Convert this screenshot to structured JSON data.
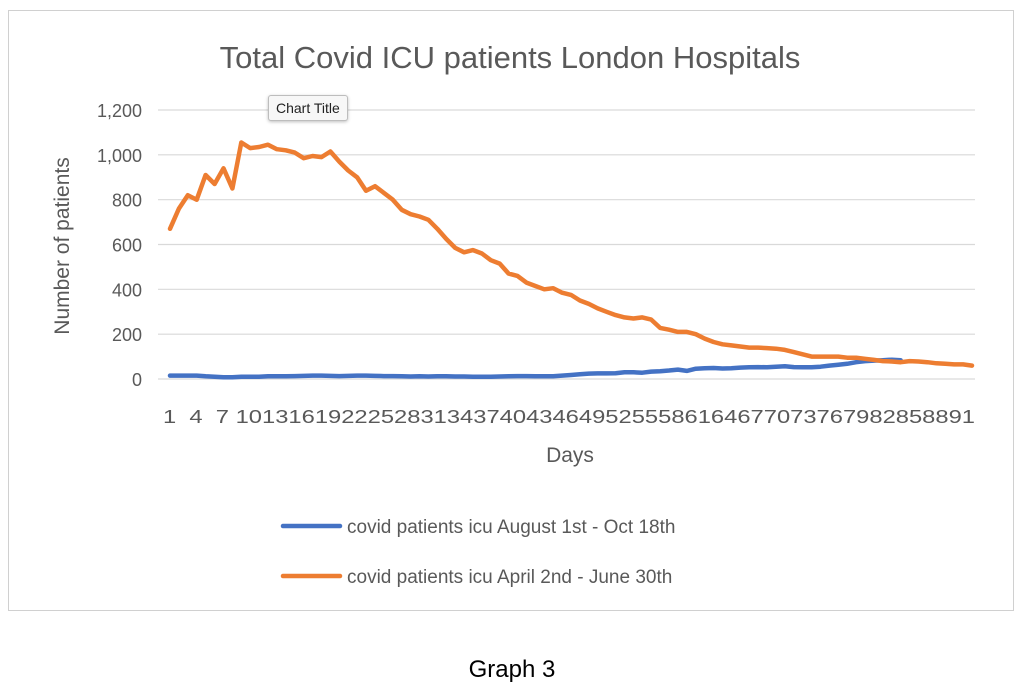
{
  "caption": "Graph 3",
  "tooltip": "Chart Title",
  "chart_data": {
    "type": "line",
    "title": "Total Covid ICU patients London Hospitals",
    "xlabel": "Days",
    "ylabel": "Number of patients",
    "ylim": [
      0,
      1200
    ],
    "yticks": [
      "0",
      "200",
      "400",
      "600",
      "800",
      "1,000",
      "1,200"
    ],
    "xtick_text": "1  4  7 10131619222528313437404346495255586164677073767982858891",
    "x_count": 91,
    "grid": true,
    "legend_position": "bottom",
    "series": [
      {
        "name": "covid patients icu August 1st - Oct 18th",
        "color": "#4472C4",
        "values": [
          15,
          15,
          15,
          15,
          12,
          10,
          8,
          8,
          10,
          10,
          10,
          12,
          12,
          12,
          13,
          14,
          15,
          15,
          14,
          13,
          14,
          15,
          15,
          14,
          13,
          13,
          12,
          11,
          12,
          11,
          12,
          12,
          11,
          11,
          10,
          10,
          10,
          11,
          12,
          13,
          13,
          12,
          12,
          12,
          15,
          18,
          21,
          24,
          25,
          25,
          26,
          30,
          30,
          28,
          33,
          35,
          38,
          42,
          36,
          46,
          48,
          49,
          47,
          48,
          51,
          52,
          53,
          52,
          55,
          57,
          53,
          52,
          52,
          55,
          60,
          64,
          68,
          75,
          80,
          82,
          84,
          86,
          84
        ]
      },
      {
        "name": "covid patients icu April 2nd - June 30th",
        "color": "#ED7D31",
        "values": [
          670,
          760,
          820,
          800,
          910,
          870,
          940,
          850,
          1055,
          1030,
          1035,
          1045,
          1025,
          1020,
          1010,
          985,
          995,
          990,
          1015,
          970,
          930,
          900,
          840,
          860,
          830,
          800,
          755,
          735,
          725,
          710,
          670,
          625,
          585,
          565,
          575,
          560,
          530,
          515,
          470,
          460,
          430,
          415,
          400,
          405,
          385,
          375,
          350,
          335,
          315,
          300,
          285,
          275,
          270,
          275,
          265,
          228,
          220,
          210,
          210,
          200,
          180,
          165,
          155,
          150,
          145,
          140,
          140,
          138,
          135,
          130,
          120,
          110,
          100,
          100,
          100,
          100,
          95,
          95,
          90,
          85,
          80,
          78,
          75,
          80,
          78,
          75,
          70,
          68,
          65,
          65,
          60
        ]
      }
    ]
  }
}
